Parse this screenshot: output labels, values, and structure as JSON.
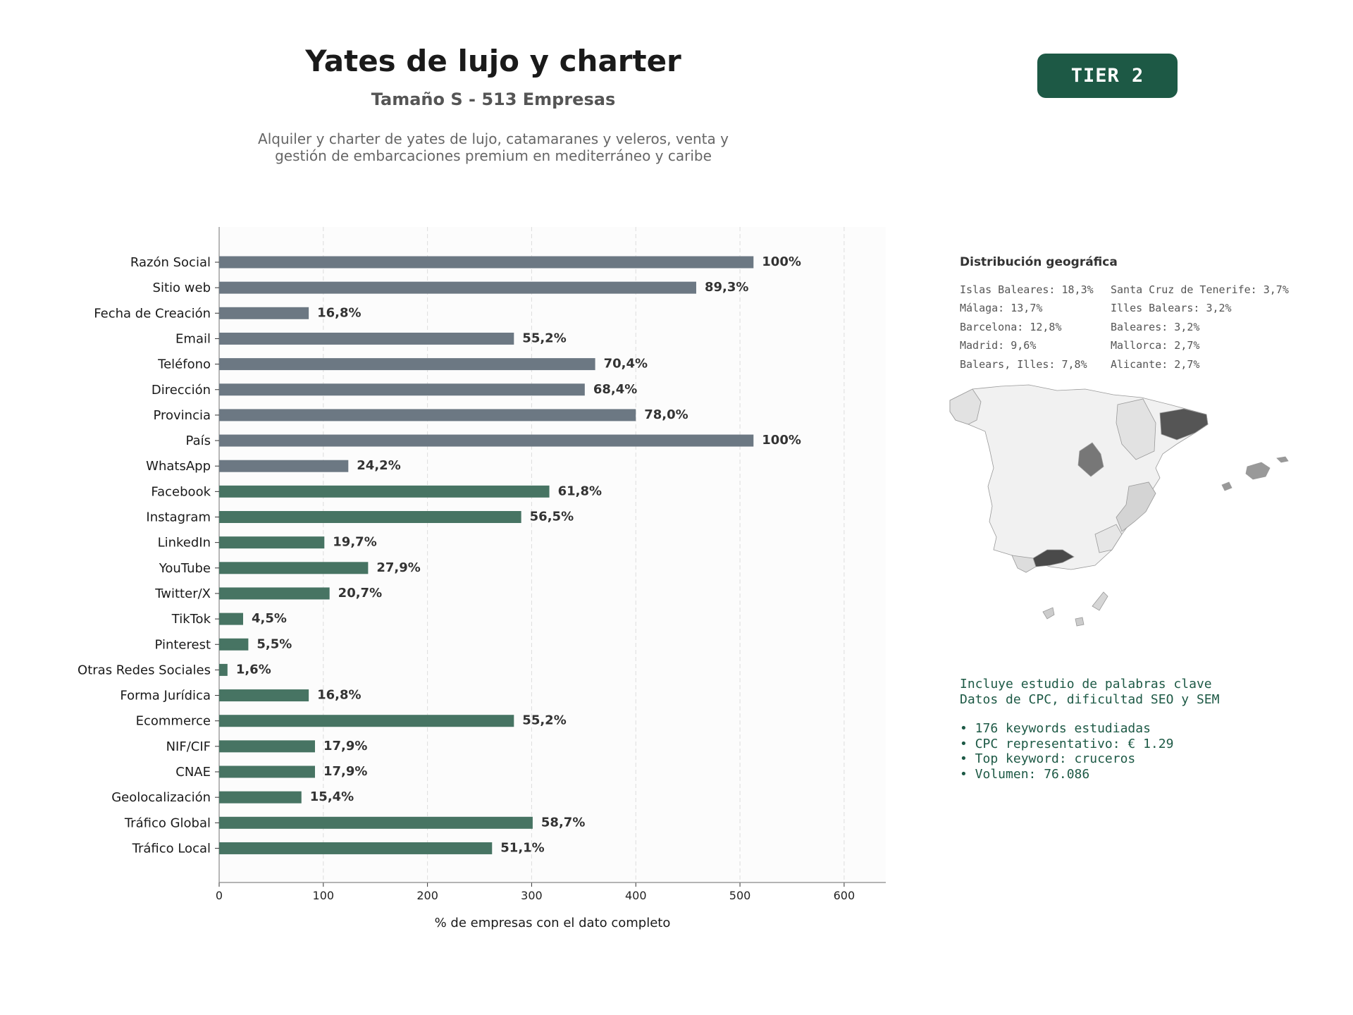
{
  "header": {
    "title": "Yates de lujo y charter",
    "subtitle": "Tamaño S - 513 Empresas",
    "description_line1": "Alquiler y charter de yates de lujo, catamaranes y veleros, venta y",
    "description_line2": "gestión de embarcaciones premium en mediterráneo y caribe",
    "tier_label": "TIER 2"
  },
  "colors": {
    "tier_badge": "#1d5945",
    "bar_basic": "#6c7883",
    "bar_extended": "#477463",
    "keyword_text": "#1d5945"
  },
  "chart_data": {
    "type": "bar",
    "orientation": "horizontal",
    "xlabel": "% de empresas con el dato completo",
    "xlim": [
      0,
      640
    ],
    "xticks": [
      0,
      100,
      200,
      300,
      400,
      500,
      600
    ],
    "grid": "vertical dashed",
    "categories": [
      "Razón Social",
      "Sitio web",
      "Fecha de Creación",
      "Email",
      "Teléfono",
      "Dirección",
      "Provincia",
      "País",
      "WhatsApp",
      "Facebook",
      "Instagram",
      "LinkedIn",
      "YouTube",
      "Twitter/X",
      "TikTok",
      "Pinterest",
      "Otras Redes Sociales",
      "Forma Jurídica",
      "Ecommerce",
      "NIF/CIF",
      "CNAE",
      "Geolocalización",
      "Tráfico Global",
      "Tráfico Local"
    ],
    "values": [
      513,
      458,
      86,
      283,
      361,
      351,
      400,
      513,
      124,
      317,
      290,
      101,
      143,
      106,
      23,
      28,
      8,
      86,
      283,
      92,
      92,
      79,
      301,
      262
    ],
    "labels": [
      "100%",
      "89,3%",
      "16,8%",
      "55,2%",
      "70,4%",
      "68,4%",
      "78,0%",
      "100%",
      "24,2%",
      "61,8%",
      "56,5%",
      "19,7%",
      "27,9%",
      "20,7%",
      "4,5%",
      "5,5%",
      "1,6%",
      "16,8%",
      "55,2%",
      "17,9%",
      "17,9%",
      "15,4%",
      "58,7%",
      "51,1%"
    ],
    "groups": [
      "basic",
      "basic",
      "basic",
      "basic",
      "basic",
      "basic",
      "basic",
      "basic",
      "basic",
      "extended",
      "extended",
      "extended",
      "extended",
      "extended",
      "extended",
      "extended",
      "extended",
      "extended",
      "extended",
      "extended",
      "extended",
      "extended",
      "extended",
      "extended"
    ]
  },
  "geo": {
    "title": "Distribución geográfica",
    "column1": [
      "Islas Baleares: 18,3%",
      "Málaga: 13,7%",
      "Barcelona: 12,8%",
      "Madrid: 9,6%",
      "Balears, Illes: 7,8%"
    ],
    "column2": [
      "Santa Cruz de Tenerife: 3,7%",
      "Illes Balears: 3,2%",
      "Baleares: 3,2%",
      "Mallorca: 2,7%",
      "Alicante: 2,7%"
    ]
  },
  "keywords": {
    "line1": "Incluye estudio de palabras clave",
    "line2": "Datos de CPC, dificultad SEO y SEM",
    "bullets": [
      "• 176 keywords estudiadas",
      "• CPC representativo: € 1.29",
      "• Top keyword: cruceros",
      "• Volumen: 76.086"
    ]
  }
}
